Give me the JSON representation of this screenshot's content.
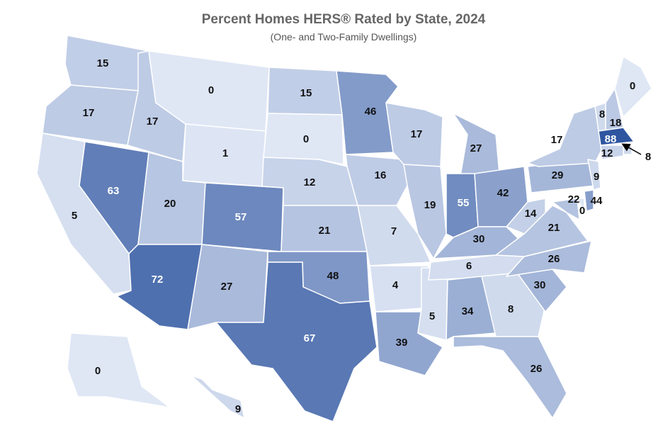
{
  "chart_data": {
    "type": "choropleth",
    "title": "Percent Homes HERS® Rated by State, 2024",
    "subtitle": "(One- and Two-Family Dwellings)",
    "values": [
      15,
      17,
      5,
      63,
      17,
      0,
      1,
      20,
      72,
      57,
      27,
      15,
      0,
      12,
      21,
      48,
      67,
      46,
      16,
      7,
      4,
      39,
      17,
      19,
      5,
      27,
      55,
      42,
      30,
      6,
      34,
      8,
      26,
      30,
      26,
      21,
      14,
      29,
      17,
      8,
      18,
      0,
      88,
      8,
      12,
      9,
      22,
      0,
      44,
      0,
      9
    ],
    "color_range": [
      "#dfe7f5",
      "#2f55a0"
    ],
    "label_light_from": 50
  }
}
